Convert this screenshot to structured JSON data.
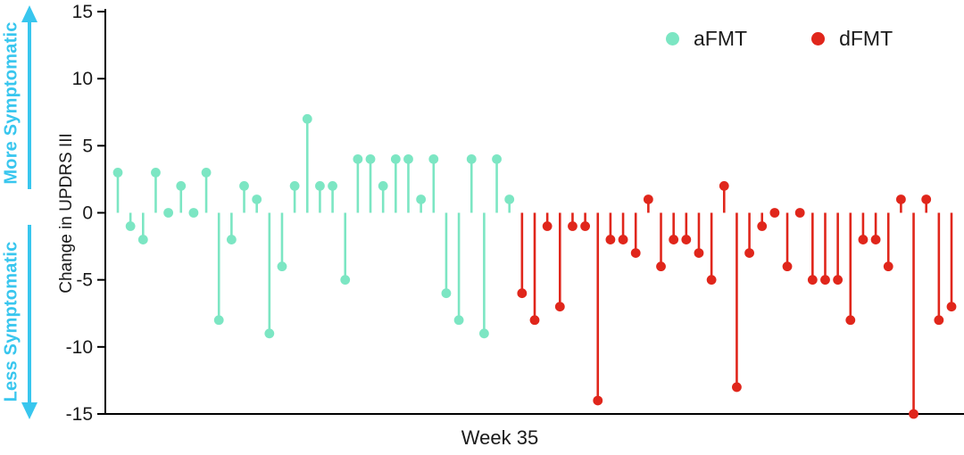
{
  "side_labels": {
    "more": "More Symptomatic",
    "less": "Less Symptomatic",
    "color": "#38c6ee"
  },
  "axis": {
    "line_color": "#000000",
    "text_color": "#1a1a1a"
  },
  "legend": {
    "items": [
      {
        "label": "aFMT",
        "color": "#7ce6c3"
      },
      {
        "label": "dFMT",
        "color": "#e0261b"
      }
    ]
  },
  "chart_data": {
    "type": "scatter",
    "variant": "lollipop-stem",
    "title": "",
    "xlabel": "Week 35",
    "ylabel": "Change in UPDRS III",
    "ylim": [
      -15,
      15
    ],
    "yticks": [
      15,
      10,
      5,
      0,
      -5,
      -10,
      -15
    ],
    "grid": false,
    "baseline": 0,
    "legend_position": "top-right",
    "series": [
      {
        "name": "aFMT",
        "color": "#7ce6c3",
        "values": [
          3,
          -1,
          -2,
          3,
          0,
          2,
          0,
          3,
          -8,
          -2,
          2,
          1,
          -9,
          -4,
          2,
          7,
          2,
          2,
          -5,
          4,
          4,
          2,
          4,
          4,
          1,
          4,
          -6,
          -8,
          4,
          -9,
          4,
          1
        ]
      },
      {
        "name": "dFMT",
        "color": "#e0261b",
        "values": [
          -6,
          -8,
          -1,
          -7,
          -1,
          -1,
          -14,
          -2,
          -2,
          -3,
          1,
          -4,
          -2,
          -2,
          -3,
          -5,
          2,
          -13,
          -3,
          -1,
          0,
          -4,
          0,
          -5,
          -5,
          -5,
          -8,
          -2,
          -2,
          -4,
          1,
          -15,
          1,
          -8,
          -7
        ]
      }
    ]
  }
}
